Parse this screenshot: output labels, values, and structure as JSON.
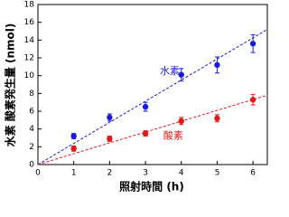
{
  "chart_data": {
    "type": "scatter",
    "x_label": "照射時間 (h)",
    "y_label": "水素 酸素発生量 (nmol)",
    "xlim": [
      0,
      6.4
    ],
    "xticks": [
      0,
      1,
      2,
      3,
      4,
      5,
      6
    ],
    "ylim": [
      0,
      18
    ],
    "yticks": [
      0,
      2,
      4,
      6,
      8,
      10,
      12,
      14,
      16,
      18
    ],
    "series": [
      {
        "name": "水素",
        "color": "#1a1adb",
        "x": [
          1,
          2,
          3,
          4,
          5,
          6
        ],
        "values": [
          3.2,
          5.3,
          6.5,
          10.1,
          11.2,
          13.6
        ],
        "errors": [
          0.3,
          0.4,
          0.5,
          0.7,
          0.9,
          1.0
        ],
        "fit": {
          "x": [
            0,
            6.4
          ],
          "values": [
            0,
            15.2
          ]
        }
      },
      {
        "name": "酸素",
        "color": "#e01818",
        "x": [
          1,
          2,
          3,
          4,
          5,
          6
        ],
        "values": [
          1.8,
          2.9,
          3.5,
          4.9,
          5.2,
          7.3
        ],
        "errors": [
          0.3,
          0.3,
          0.3,
          0.4,
          0.4,
          0.6
        ],
        "fit": {
          "x": [
            0,
            6.4
          ],
          "values": [
            0,
            7.8
          ]
        }
      }
    ]
  }
}
